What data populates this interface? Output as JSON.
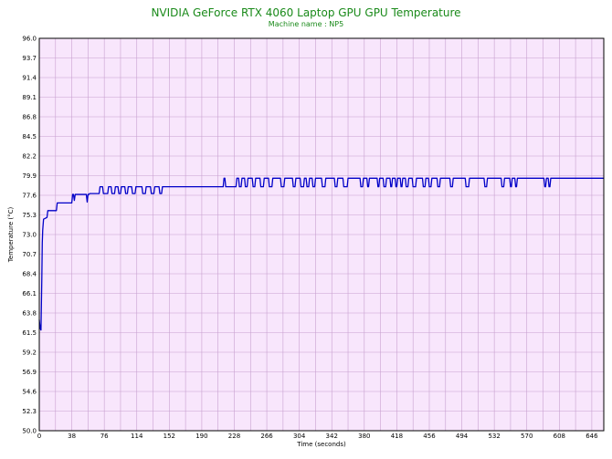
{
  "chart_data": {
    "type": "line",
    "title": "NVIDIA GeForce RTX 4060 Laptop GPU GPU Temperature",
    "subtitle": "Machine name : NP5",
    "xlabel": "Time (seconds)",
    "ylabel": "Temperature (°C)",
    "xlim": [
      0,
      660
    ],
    "ylim": [
      50.0,
      96.0
    ],
    "x_ticks": [
      0,
      38,
      76,
      114,
      152,
      190,
      228,
      266,
      304,
      342,
      380,
      418,
      456,
      494,
      532,
      570,
      608,
      646
    ],
    "y_ticks": [
      "50.0",
      "52.3",
      "54.6",
      "56.9",
      "59.2",
      "61.5",
      "63.8",
      "66.1",
      "68.4",
      "70.7",
      "73.0",
      "75.3",
      "77.6",
      "79.9",
      "82.2",
      "84.5",
      "86.8",
      "89.1",
      "91.4",
      "93.7",
      "96.0"
    ],
    "grid": true,
    "colors": {
      "line": "#0000c8",
      "plot_bg": "#f8e6fc",
      "grid": "#c8a0d0",
      "title": "#1a8a1a"
    },
    "series": [
      {
        "values": [
          [
            0,
            63.0
          ],
          [
            1,
            62.0
          ],
          [
            2,
            61.8
          ],
          [
            3,
            68.0
          ],
          [
            3.5,
            72.0
          ],
          [
            4,
            73.5
          ],
          [
            5,
            74.8
          ],
          [
            9,
            75.0
          ],
          [
            10,
            75.8
          ],
          [
            20,
            75.8
          ],
          [
            21,
            76.7
          ],
          [
            38,
            76.7
          ],
          [
            39,
            77.7
          ],
          [
            40,
            77.7
          ],
          [
            41,
            77.0
          ],
          [
            42,
            77.7
          ],
          [
            55,
            77.7
          ],
          [
            56,
            76.8
          ],
          [
            57,
            77.7
          ],
          [
            58,
            77.7
          ],
          [
            59,
            77.8
          ],
          [
            70,
            77.8
          ],
          [
            71,
            78.6
          ],
          [
            74,
            78.6
          ],
          [
            75,
            77.8
          ],
          [
            80,
            77.8
          ],
          [
            81,
            78.6
          ],
          [
            84,
            78.6
          ],
          [
            85,
            77.8
          ],
          [
            88,
            77.8
          ],
          [
            89,
            78.6
          ],
          [
            92,
            78.6
          ],
          [
            93,
            77.8
          ],
          [
            95,
            77.8
          ],
          [
            96,
            78.6
          ],
          [
            100,
            78.6
          ],
          [
            101,
            77.8
          ],
          [
            103,
            77.8
          ],
          [
            104,
            78.6
          ],
          [
            108,
            78.6
          ],
          [
            109,
            77.8
          ],
          [
            112,
            77.8
          ],
          [
            113,
            78.6
          ],
          [
            120,
            78.6
          ],
          [
            121,
            77.8
          ],
          [
            124,
            77.8
          ],
          [
            125,
            78.6
          ],
          [
            130,
            78.6
          ],
          [
            131,
            77.8
          ],
          [
            134,
            77.8
          ],
          [
            135,
            78.6
          ],
          [
            140,
            78.6
          ],
          [
            141,
            77.8
          ],
          [
            143,
            77.8
          ],
          [
            144,
            78.6
          ],
          [
            150,
            78.6
          ],
          [
            160,
            78.6
          ],
          [
            215,
            78.6
          ],
          [
            216,
            79.6
          ],
          [
            217,
            79.6
          ],
          [
            218,
            78.6
          ],
          [
            230,
            78.6
          ],
          [
            231,
            79.6
          ],
          [
            233,
            79.6
          ],
          [
            234,
            78.6
          ],
          [
            236,
            78.6
          ],
          [
            237,
            79.6
          ],
          [
            240,
            79.6
          ],
          [
            241,
            78.6
          ],
          [
            243,
            78.6
          ],
          [
            244,
            79.6
          ],
          [
            249,
            79.6
          ],
          [
            250,
            78.6
          ],
          [
            252,
            78.6
          ],
          [
            253,
            79.6
          ],
          [
            258,
            79.6
          ],
          [
            259,
            78.6
          ],
          [
            262,
            78.6
          ],
          [
            263,
            79.6
          ],
          [
            268,
            79.6
          ],
          [
            269,
            78.6
          ],
          [
            272,
            78.6
          ],
          [
            273,
            79.6
          ],
          [
            282,
            79.6
          ],
          [
            283,
            78.6
          ],
          [
            286,
            78.6
          ],
          [
            287,
            79.6
          ],
          [
            296,
            79.6
          ],
          [
            297,
            78.6
          ],
          [
            299,
            78.6
          ],
          [
            300,
            79.6
          ],
          [
            305,
            79.6
          ],
          [
            306,
            78.6
          ],
          [
            309,
            78.6
          ],
          [
            310,
            79.6
          ],
          [
            312,
            79.6
          ],
          [
            313,
            78.6
          ],
          [
            315,
            78.6
          ],
          [
            316,
            79.6
          ],
          [
            319,
            79.6
          ],
          [
            320,
            78.6
          ],
          [
            322,
            78.6
          ],
          [
            323,
            79.6
          ],
          [
            330,
            79.6
          ],
          [
            331,
            78.6
          ],
          [
            334,
            78.6
          ],
          [
            335,
            79.6
          ],
          [
            345,
            79.6
          ],
          [
            346,
            78.6
          ],
          [
            348,
            78.6
          ],
          [
            349,
            79.6
          ],
          [
            355,
            79.6
          ],
          [
            356,
            78.6
          ],
          [
            360,
            78.6
          ],
          [
            361,
            79.6
          ],
          [
            375,
            79.6
          ],
          [
            376,
            78.6
          ],
          [
            378,
            78.6
          ],
          [
            379,
            79.6
          ],
          [
            383,
            79.6
          ],
          [
            384,
            78.6
          ],
          [
            385,
            78.6
          ],
          [
            386,
            79.6
          ],
          [
            395,
            79.6
          ],
          [
            396,
            78.6
          ],
          [
            397,
            78.6
          ],
          [
            398,
            79.6
          ],
          [
            402,
            79.6
          ],
          [
            403,
            78.6
          ],
          [
            405,
            78.6
          ],
          [
            406,
            79.6
          ],
          [
            410,
            79.6
          ],
          [
            411,
            78.6
          ],
          [
            412,
            78.6
          ],
          [
            413,
            79.6
          ],
          [
            416,
            79.6
          ],
          [
            417,
            78.6
          ],
          [
            418,
            78.6
          ],
          [
            419,
            79.6
          ],
          [
            422,
            79.6
          ],
          [
            423,
            78.6
          ],
          [
            424,
            78.6
          ],
          [
            425,
            79.6
          ],
          [
            428,
            79.6
          ],
          [
            429,
            78.6
          ],
          [
            431,
            78.6
          ],
          [
            432,
            79.6
          ],
          [
            436,
            79.6
          ],
          [
            437,
            78.6
          ],
          [
            440,
            78.6
          ],
          [
            441,
            79.6
          ],
          [
            448,
            79.6
          ],
          [
            449,
            78.6
          ],
          [
            451,
            78.6
          ],
          [
            452,
            79.6
          ],
          [
            455,
            79.6
          ],
          [
            456,
            78.6
          ],
          [
            458,
            78.6
          ],
          [
            459,
            79.6
          ],
          [
            465,
            79.6
          ],
          [
            466,
            78.6
          ],
          [
            468,
            78.6
          ],
          [
            469,
            79.6
          ],
          [
            480,
            79.6
          ],
          [
            481,
            78.6
          ],
          [
            483,
            78.6
          ],
          [
            484,
            79.6
          ],
          [
            498,
            79.6
          ],
          [
            499,
            78.6
          ],
          [
            502,
            78.6
          ],
          [
            503,
            79.6
          ],
          [
            520,
            79.6
          ],
          [
            521,
            78.6
          ],
          [
            523,
            78.6
          ],
          [
            524,
            79.6
          ],
          [
            540,
            79.6
          ],
          [
            541,
            78.6
          ],
          [
            543,
            78.6
          ],
          [
            544,
            79.6
          ],
          [
            550,
            79.6
          ],
          [
            551,
            78.6
          ],
          [
            552,
            78.6
          ],
          [
            553,
            79.6
          ],
          [
            556,
            79.6
          ],
          [
            557,
            78.6
          ],
          [
            558,
            78.6
          ],
          [
            559,
            79.6
          ],
          [
            590,
            79.6
          ],
          [
            591,
            78.6
          ],
          [
            592,
            78.6
          ],
          [
            593,
            79.6
          ],
          [
            595,
            79.6
          ],
          [
            596,
            78.6
          ],
          [
            597,
            78.6
          ],
          [
            598,
            79.6
          ],
          [
            660,
            79.6
          ]
        ]
      }
    ]
  }
}
